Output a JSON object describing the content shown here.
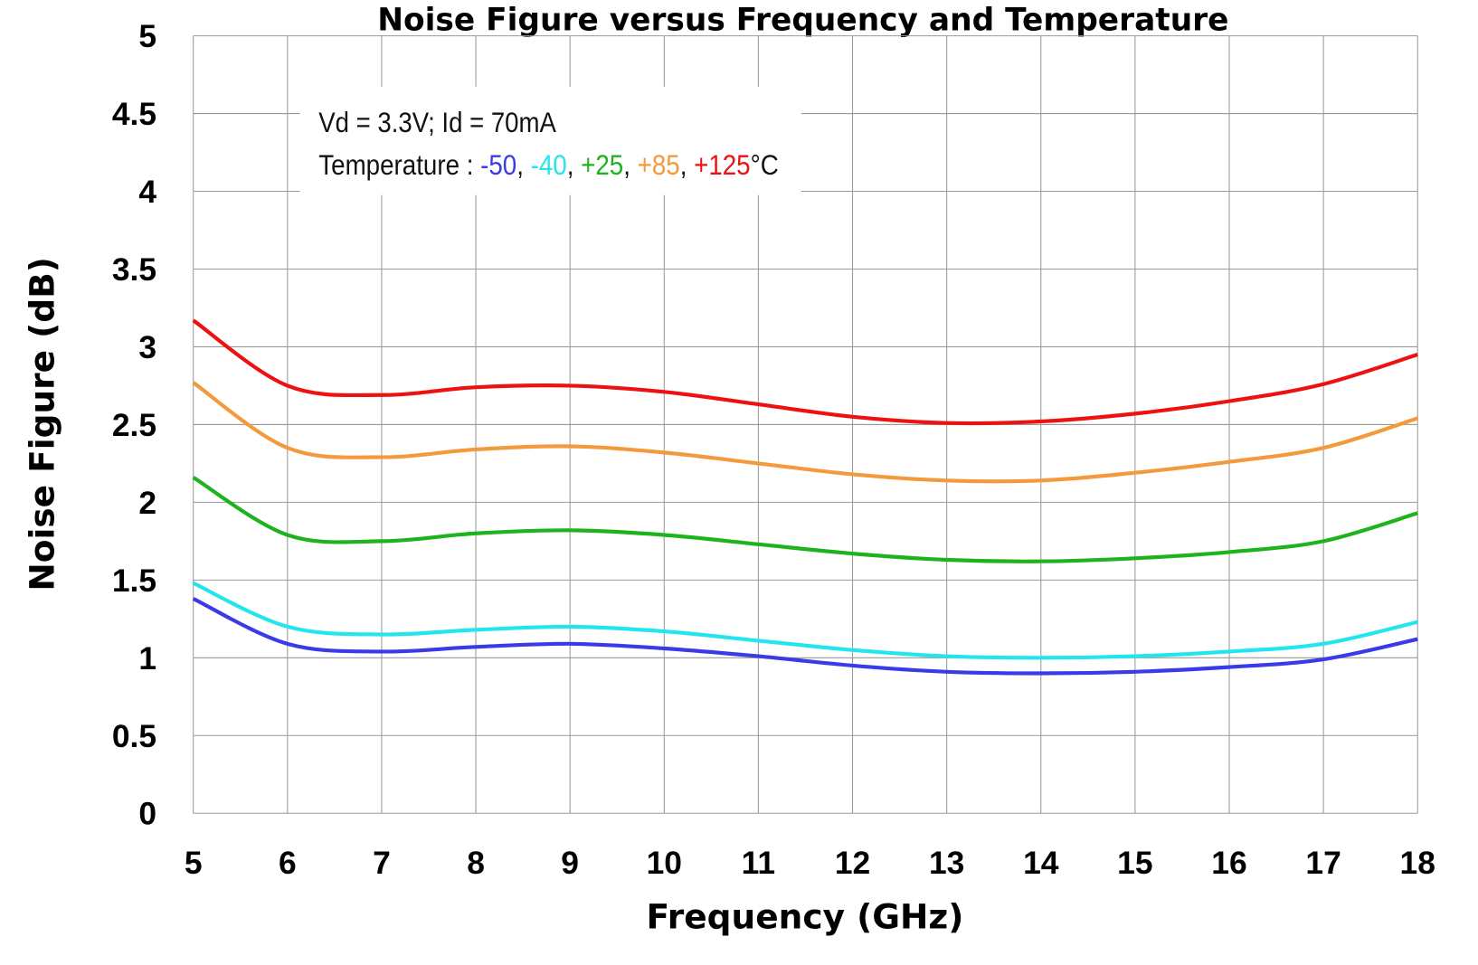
{
  "chart_data": {
    "type": "line",
    "title": "Noise Figure versus Frequency and Temperature",
    "xlabel": "Frequency (GHz)",
    "ylabel": "Noise Figure (dB)",
    "xlim": [
      5,
      18
    ],
    "ylim": [
      0,
      5
    ],
    "x_ticks": [
      "5",
      "6",
      "7",
      "8",
      "9",
      "10",
      "11",
      "12",
      "13",
      "14",
      "15",
      "16",
      "17",
      "18"
    ],
    "y_ticks": [
      "0",
      "0.5",
      "1",
      "1.5",
      "2",
      "2.5",
      "3",
      "3.5",
      "4",
      "4.5",
      "5"
    ],
    "grid": true,
    "annotation": {
      "line1": "Vd = 3.3V; Id = 70mA",
      "line2_prefix": "Temperature : ",
      "temps": [
        "-50",
        "-40",
        "+25",
        "+85",
        "+125"
      ],
      "unit": "°C"
    },
    "x": [
      5,
      6,
      7,
      8,
      9,
      10,
      11,
      12,
      13,
      14,
      15,
      16,
      17,
      18
    ],
    "series": [
      {
        "temp": "-50",
        "color": "#3a3ae8",
        "values": [
          1.38,
          1.09,
          1.04,
          1.07,
          1.09,
          1.06,
          1.01,
          0.95,
          0.91,
          0.9,
          0.91,
          0.94,
          0.99,
          1.12
        ]
      },
      {
        "temp": "-40",
        "color": "#22e5ee",
        "values": [
          1.48,
          1.2,
          1.15,
          1.18,
          1.2,
          1.17,
          1.11,
          1.05,
          1.01,
          1.0,
          1.01,
          1.04,
          1.09,
          1.23
        ]
      },
      {
        "temp": "+25",
        "color": "#1cb31c",
        "values": [
          2.16,
          1.79,
          1.75,
          1.8,
          1.82,
          1.79,
          1.73,
          1.67,
          1.63,
          1.62,
          1.64,
          1.68,
          1.75,
          1.93
        ]
      },
      {
        "temp": "+85",
        "color": "#f39a3c",
        "values": [
          2.77,
          2.35,
          2.29,
          2.34,
          2.36,
          2.32,
          2.25,
          2.18,
          2.14,
          2.14,
          2.19,
          2.26,
          2.35,
          2.54
        ]
      },
      {
        "temp": "+125",
        "color": "#ee1111",
        "values": [
          3.17,
          2.75,
          2.69,
          2.74,
          2.75,
          2.71,
          2.63,
          2.55,
          2.51,
          2.52,
          2.57,
          2.65,
          2.76,
          2.95
        ]
      }
    ]
  }
}
